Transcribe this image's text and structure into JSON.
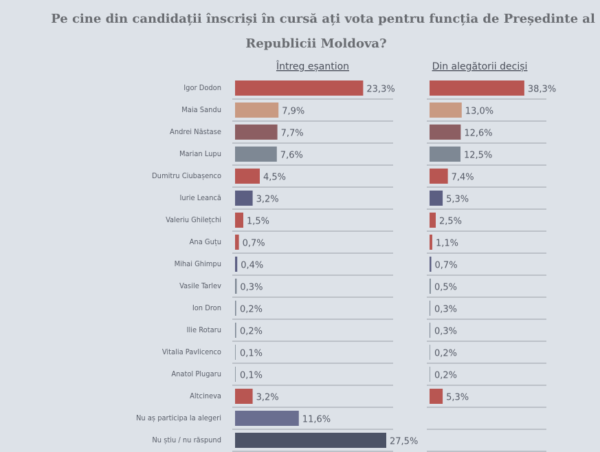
{
  "chart_data": {
    "type": "bar",
    "orientation": "horizontal",
    "title": [
      "Pe cine din candidații înscriși în cursă ați vota pentru funcția de Președinte al",
      "Republicii Moldova?"
    ],
    "categories": [
      "Igor Dodon",
      "Maia Sandu",
      "Andrei Năstase",
      "Marian Lupu",
      "Dumitru Ciubașenco",
      "Iurie Leancă",
      "Valeriu Ghilețchi",
      "Ana Guțu",
      "Mihai Ghimpu",
      "Vasile Tarlev",
      "Ion Dron",
      "Ilie Rotaru",
      "Vitalia Pavlicenco",
      "Anatol Plugaru",
      "Altcineva",
      "Nu aș participa la alegeri",
      "Nu știu / nu răspund"
    ],
    "colors": [
      "#b85652",
      "#c99a82",
      "#8c5e62",
      "#7e8894",
      "#b85652",
      "#5c5f82",
      "#b85652",
      "#b85652",
      "#5c5f82",
      "#7e8894",
      "#7e8894",
      "#7e8894",
      "#7e8894",
      "#7e8894",
      "#b85652",
      "#6a6e90",
      "#4c5366"
    ],
    "series": [
      {
        "name": "Întreg eșantion",
        "xlim": [
          0,
          30
        ],
        "values": [
          23.3,
          7.9,
          7.7,
          7.6,
          4.5,
          3.2,
          1.5,
          0.7,
          0.4,
          0.3,
          0.2,
          0.2,
          0.1,
          0.1,
          3.2,
          11.6,
          27.5
        ],
        "value_labels": [
          "23,3%",
          "7,9%",
          "7,7%",
          "7,6%",
          "4,5%",
          "3,2%",
          "1,5%",
          "0,7%",
          "0,4%",
          "0,3%",
          "0,2%",
          "0,2%",
          "0,1%",
          "0,1%",
          "3,2%",
          "11,6%",
          "27,5%"
        ]
      },
      {
        "name": "Din alegătorii deciși",
        "xlim": [
          0,
          50
        ],
        "values": [
          38.3,
          13.0,
          12.6,
          12.5,
          7.4,
          5.3,
          2.5,
          1.1,
          0.7,
          0.5,
          0.3,
          0.3,
          0.2,
          0.2,
          5.3,
          null,
          null
        ],
        "value_labels": [
          "38,3%",
          "13,0%",
          "12,6%",
          "12,5%",
          "7,4%",
          "5,3%",
          "2,5%",
          "1,1%",
          "0,7%",
          "0,5%",
          "0,3%",
          "0,3%",
          "0,2%",
          "0,2%",
          "5,3%",
          null,
          null
        ]
      }
    ]
  }
}
